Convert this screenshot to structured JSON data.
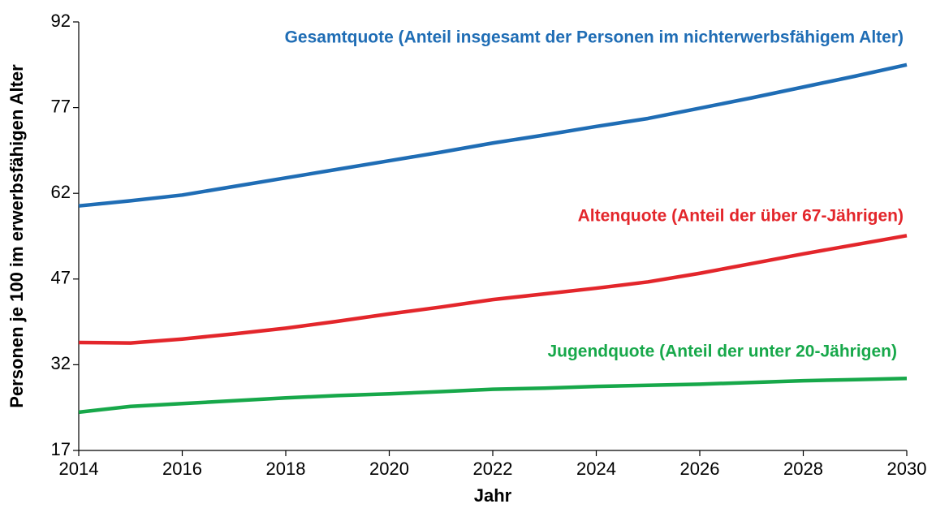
{
  "chart_data": {
    "type": "line",
    "x_label": "Jahr",
    "y_label": "Personen je 100 im erwerbsfähigen Alter",
    "x": [
      2014,
      2015,
      2016,
      2017,
      2018,
      2019,
      2020,
      2021,
      2022,
      2023,
      2024,
      2025,
      2026,
      2027,
      2028,
      2029,
      2030
    ],
    "series": [
      {
        "name": "Gesamtquote (Anteil insgesamt der Personen im nichterwerbsfähigem Alter)",
        "color": "#1f6db5",
        "values": [
          59.8,
          60.7,
          61.7,
          63.2,
          64.7,
          66.2,
          67.7,
          69.2,
          70.8,
          72.2,
          73.7,
          75.1,
          76.9,
          78.7,
          80.6,
          82.5,
          84.5
        ]
      },
      {
        "name": "Altenquote (Anteil der über 67-Jährigen)",
        "color": "#e3262b",
        "values": [
          35.9,
          35.8,
          36.5,
          37.4,
          38.4,
          39.6,
          40.9,
          42.1,
          43.4,
          44.4,
          45.4,
          46.5,
          48.0,
          49.7,
          51.4,
          53.0,
          54.6
        ]
      },
      {
        "name": "Jugendquote (Anteil der unter 20-Jährigen)",
        "color": "#17a84a",
        "values": [
          23.7,
          24.7,
          25.2,
          25.7,
          26.2,
          26.6,
          26.9,
          27.3,
          27.7,
          27.9,
          28.2,
          28.4,
          28.6,
          28.9,
          29.2,
          29.4,
          29.6
        ]
      }
    ],
    "xlim": [
      2014,
      2030
    ],
    "xticks": [
      2014,
      2016,
      2018,
      2020,
      2022,
      2024,
      2026,
      2028,
      2030
    ],
    "ylim": [
      17,
      92
    ],
    "yticks": [
      17,
      32,
      47,
      62,
      77,
      92
    ],
    "grid": false
  }
}
